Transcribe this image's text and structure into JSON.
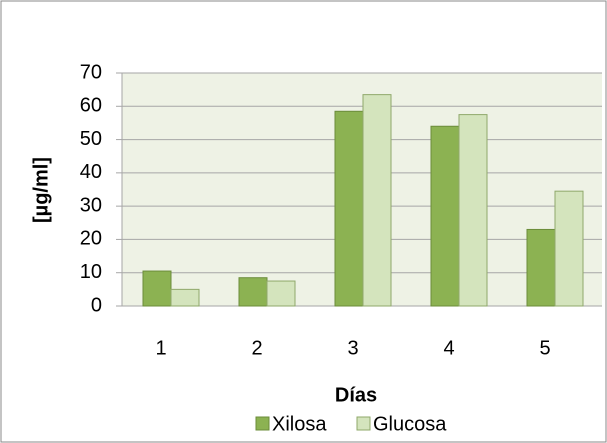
{
  "chart_data": {
    "type": "bar",
    "categories": [
      "1",
      "2",
      "3",
      "4",
      "5"
    ],
    "series": [
      {
        "name": "Xilosa",
        "color": "#8cb252",
        "values": [
          10.5,
          8.5,
          58.5,
          54,
          23
        ]
      },
      {
        "name": "Glucosa",
        "color": "#d4e4bd",
        "values": [
          5,
          7.5,
          63.5,
          57.5,
          34.5
        ]
      }
    ],
    "ylabel": "[µg/ml]",
    "xlabel": "Días",
    "ylim": [
      0,
      70
    ],
    "yticks": [
      0,
      10,
      20,
      30,
      40,
      50,
      60,
      70
    ],
    "grid": true,
    "legend": "bottom"
  }
}
